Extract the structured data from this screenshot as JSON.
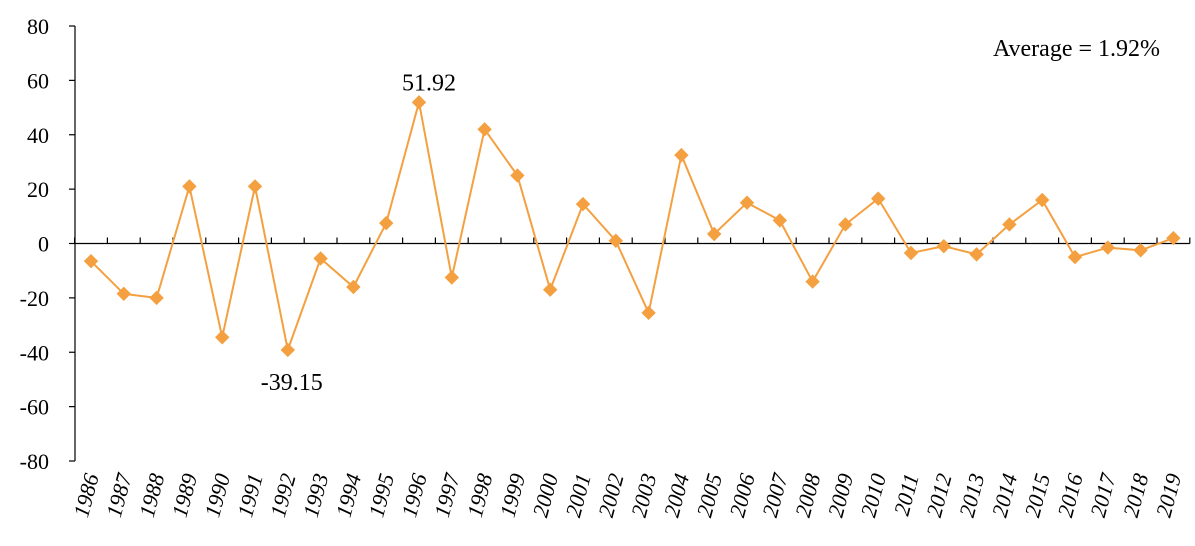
{
  "chart_data": {
    "type": "line",
    "title": "",
    "xlabel": "",
    "ylabel": "",
    "ylim": [
      -80,
      80
    ],
    "yticks": [
      80,
      60,
      40,
      20,
      0,
      -20,
      -40,
      -60,
      -80
    ],
    "grid": false,
    "legend": "none",
    "color": "#F4A040",
    "categories": [
      "1986",
      "1987",
      "1988",
      "1989",
      "1990",
      "1991",
      "1992",
      "1993",
      "1994",
      "1995",
      "1996",
      "1997",
      "1998",
      "1999",
      "2000",
      "2001",
      "2002",
      "2003",
      "2004",
      "2005",
      "2006",
      "2007",
      "2008",
      "2009",
      "2010",
      "2011",
      "2012",
      "2013",
      "2014",
      "2015",
      "2016",
      "2017",
      "2018",
      "2019"
    ],
    "series": [
      {
        "values": [
          -6.5,
          -18.5,
          -20,
          21,
          -34.5,
          21,
          -39.15,
          -5.5,
          -16,
          7.5,
          51.92,
          -12.5,
          42,
          25,
          -17,
          14.5,
          1,
          -25.5,
          32.5,
          3.5,
          15,
          8.5,
          -14,
          7,
          16.5,
          -3.5,
          -1,
          -4,
          7,
          16,
          -5,
          -1.5,
          -2.5,
          2
        ]
      }
    ],
    "annotations": {
      "average": "Average = 1.92%",
      "max_label": "51.92",
      "min_label": "-39.15"
    }
  }
}
